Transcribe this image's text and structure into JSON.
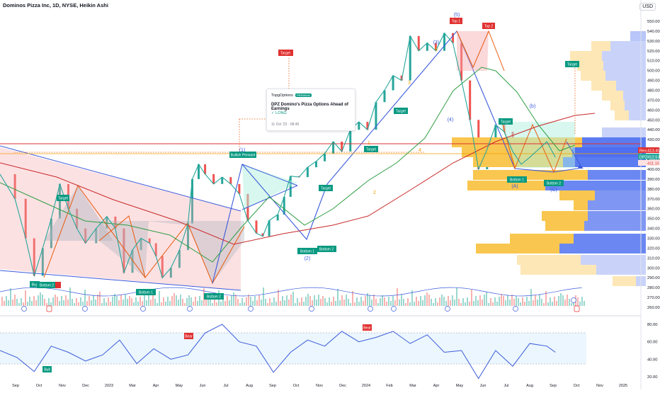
{
  "header": {
    "title": "Dominos Pizza Inc, 1D, NYSE, Heikin Ashi",
    "currency": "USD"
  },
  "idea_card": {
    "brand": "TopgOptions",
    "badge": "PREMIUM",
    "title": "DPZ Domino's Pizza Options Ahead of Earnings",
    "direction": "LONG",
    "date": "11 Oct '23 · 08:46"
  },
  "labels": {
    "bottom_2_a": "Bottom 2",
    "bottom_1_a": "Bottom 1",
    "bottom_2_b": "Bottom 2",
    "bottom_1_b": "Bottom 1",
    "bottom_2_c": "Bottom 2",
    "bottom_1_c": "Bottom 1",
    "bottom_2_d": "Bottom 2",
    "top_1": "Top 1",
    "top_2": "Top 2",
    "target_1": "Target",
    "target_2": "Target",
    "target_3": "Target",
    "target_4": "Target",
    "target_5": "Target",
    "target_6": "Target",
    "target_7": "Target",
    "bullish_pennant": "Bullish Pennant",
    "buy": "Buy",
    "bear_1": "Bear",
    "bear_2": "Bear",
    "bull": "Bull",
    "wave_1": "(1)",
    "wave_2": "(2)",
    "wave_3": "(3)",
    "wave_4": "(4)",
    "wave_5": "(5)",
    "wave_a": "(A)",
    "wave_b": "(b)",
    "wave_c": "(C)",
    "sub_1": "1",
    "sub_2": "2",
    "sub_3": "3",
    "sub_4": "4",
    "sub_5": "5",
    "price_tag_1": "413.40",
    "price_tag_2": "412.51",
    "price_tag_3": "411.15",
    "tag_prefix_1": "Res",
    "tag_prefix_2": "DPZ"
  },
  "chart_data": [
    {
      "type": "line",
      "title": "",
      "x_tick_labels": [
        "Sep",
        "Oct",
        "Nov",
        "Dec",
        "2023",
        "Mar",
        "Apr",
        "May",
        "Jun",
        "Jul",
        "Aug",
        "Sep",
        "Oct",
        "Nov",
        "Dec",
        "2024",
        "Feb",
        "Mar",
        "Apr",
        "May",
        "Jun",
        "Jul",
        "Aug",
        "Sep",
        "Oct",
        "Nov",
        "2025"
      ],
      "y_ticks": [
        260,
        270,
        280,
        290,
        300,
        310,
        320,
        330,
        340,
        350,
        360,
        370,
        380,
        390,
        400,
        410,
        420,
        430,
        440,
        450,
        460,
        470,
        480,
        490,
        500,
        510,
        520,
        530,
        540,
        550
      ],
      "ylim": [
        257,
        552
      ],
      "x_range_months": [
        0,
        30
      ],
      "series": [
        {
          "x": [
            0,
            0.7,
            1.2,
            1.6,
            2.0,
            2.4,
            2.8,
            3.2,
            3.6,
            4.0,
            4.5,
            5.0,
            5.4,
            5.8,
            6.2,
            6.6,
            7.0,
            7.3,
            7.6,
            8.0,
            8.4,
            8.8,
            9.0,
            9.3,
            9.6,
            10.0,
            10.4,
            10.8,
            11.2,
            11.6,
            12.0,
            12.3,
            12.6,
            13.0,
            13.3,
            13.6,
            14.0,
            14.4,
            14.8,
            15.2,
            15.6,
            16.0,
            16.4,
            16.8,
            17.2,
            17.6,
            18.0,
            18.4,
            18.8,
            19.2,
            19.6,
            20.0,
            20.4,
            20.8,
            21.2,
            21.6,
            22.0,
            22.4,
            22.8,
            23.2,
            23.6,
            24.0,
            24.4,
            24.8,
            25.2,
            25.6,
            26.0
          ],
          "values": [
            395,
            370,
            330,
            292,
            320,
            350,
            385,
            360,
            340,
            325,
            340,
            352,
            340,
            295,
            318,
            330,
            325,
            312,
            290,
            300,
            318,
            345,
            390,
            405,
            395,
            385,
            392,
            385,
            375,
            348,
            335,
            332,
            348,
            354,
            372,
            393,
            392,
            402,
            408,
            416,
            428,
            418,
            440,
            448,
            440,
            468,
            480,
            495,
            490,
            535,
            520,
            528,
            520,
            538,
            528,
            490,
            450,
            400,
            420,
            445,
            438,
            418,
            405,
            412,
            420,
            428,
            412
          ]
        }
      ]
    },
    {
      "type": "line",
      "title": "",
      "y_ticks": [
        20,
        40,
        60,
        80
      ],
      "ylim": [
        15,
        85
      ],
      "overbought_oversold": [
        70,
        30
      ],
      "series": [
        {
          "x": [
            0,
            0.8,
            1.6,
            2.4,
            3.2,
            4.0,
            4.8,
            5.6,
            6.4,
            7.2,
            8.0,
            8.8,
            9.6,
            10.4,
            11.2,
            12.0,
            12.8,
            13.6,
            14.4,
            15.2,
            16.0,
            16.8,
            17.6,
            18.4,
            19.2,
            20.0,
            20.8,
            21.6,
            22.4,
            23.2,
            24.0,
            24.8,
            25.6,
            26.0
          ],
          "values": [
            50,
            42,
            26,
            55,
            48,
            38,
            45,
            62,
            35,
            52,
            40,
            45,
            70,
            80,
            60,
            55,
            25,
            48,
            62,
            55,
            72,
            60,
            65,
            72,
            58,
            68,
            48,
            50,
            18,
            50,
            32,
            58,
            55,
            48
          ]
        }
      ]
    }
  ]
}
